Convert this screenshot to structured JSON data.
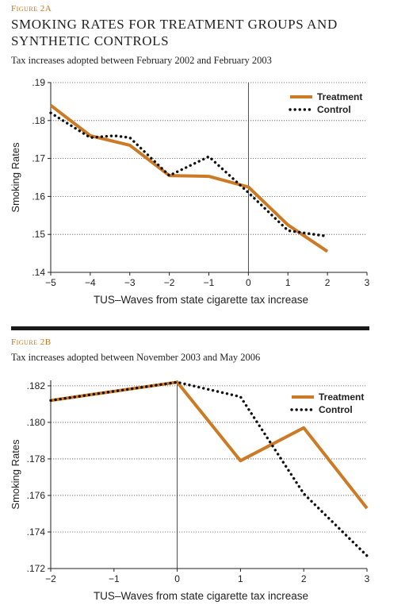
{
  "colors": {
    "treatment": "#cc7a25",
    "control": "#111111",
    "label": "#c8741e"
  },
  "chart_data": [
    {
      "figure_label": "Figure 2A",
      "title": "SMOKING RATES FOR TREATMENT GROUPS AND SYNTHETIC CONTROLS",
      "subtitle": "Tax increases adopted between February 2002 and February 2003",
      "type": "line",
      "xlabel": "TUS–Waves from state cigarette tax increase",
      "ylabel": "Smoking Rates",
      "xlim": [
        -5,
        3
      ],
      "ylim": [
        0.14,
        0.19
      ],
      "x_ticks": [
        -5,
        -4,
        -3,
        -2,
        -1,
        0,
        1,
        2,
        3
      ],
      "x_tick_labels": [
        "−5",
        "−4",
        "−3",
        "−2",
        "−1",
        "0",
        "1",
        "2",
        "3"
      ],
      "y_ticks": [
        0.14,
        0.15,
        0.16,
        0.17,
        0.18,
        0.19
      ],
      "y_tick_labels": [
        ".14",
        ".15",
        ".16",
        ".17",
        ".18",
        ".19"
      ],
      "vline_x": 0,
      "legend_position": "top-right",
      "series": [
        {
          "name": "Treatment",
          "style": "solid",
          "x": [
            -5,
            -4,
            -3,
            -2,
            -1,
            0,
            1,
            2
          ],
          "y": [
            0.184,
            0.176,
            0.1735,
            0.1655,
            0.1653,
            0.1625,
            0.1525,
            0.1455
          ]
        },
        {
          "name": "Control",
          "style": "dotted",
          "x": [
            -5,
            -4,
            -3.4,
            -3,
            -2,
            -1,
            0,
            1,
            2
          ],
          "y": [
            0.182,
            0.1755,
            0.176,
            0.1755,
            0.1655,
            0.1705,
            0.161,
            0.151,
            0.1495
          ]
        }
      ]
    },
    {
      "figure_label": "Figure 2B",
      "subtitle": "Tax increases adopted between November 2003 and May 2006",
      "type": "line",
      "xlabel": "TUS–Waves from state cigarette tax increase",
      "ylabel": "Smoking Rates",
      "xlim": [
        -2,
        3
      ],
      "ylim": [
        0.172,
        0.1823
      ],
      "x_ticks": [
        -2,
        -1,
        0,
        1,
        2,
        3
      ],
      "x_tick_labels": [
        "−2",
        "−1",
        "0",
        "1",
        "2",
        "3"
      ],
      "y_ticks": [
        0.172,
        0.174,
        0.176,
        0.178,
        0.18,
        0.182
      ],
      "y_tick_labels": [
        ".172",
        ".174",
        ".176",
        ".178",
        ".180",
        ".182"
      ],
      "vline_x": 0,
      "legend_position": "top-right",
      "series": [
        {
          "name": "Treatment",
          "style": "solid",
          "x": [
            -2,
            0,
            1,
            2,
            3
          ],
          "y": [
            0.1812,
            0.1822,
            0.1779,
            0.1797,
            0.1753
          ]
        },
        {
          "name": "Control",
          "style": "dotted",
          "x": [
            -2,
            0,
            1,
            2,
            3
          ],
          "y": [
            0.1812,
            0.1822,
            0.1814,
            0.1761,
            0.1727
          ]
        }
      ]
    }
  ]
}
